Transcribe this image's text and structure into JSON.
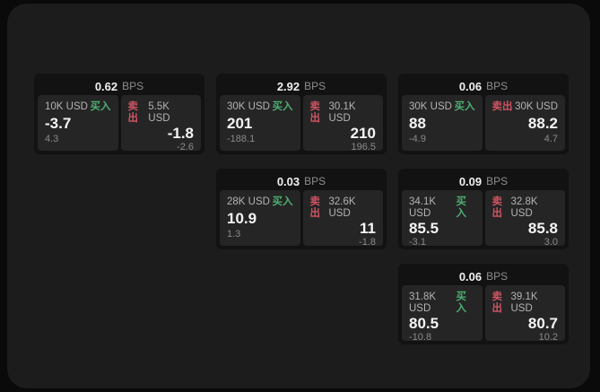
{
  "labels": {
    "bps_suffix": "BPS",
    "buy": "买入",
    "sell": "卖出"
  },
  "colors": {
    "buy_green": "#4fae72",
    "sell_red": "#d05463",
    "panel_bg": "#1c1c1c",
    "card_bg": "#121212",
    "quote_bg": "#252525",
    "page_bg": "#0a0a0a"
  },
  "layout": {
    "columns": [
      [
        0
      ],
      [
        1,
        3
      ],
      [
        2,
        4,
        5
      ]
    ]
  },
  "cards": [
    {
      "bps": "0.62",
      "buy": {
        "amount": "10K USD",
        "value": "-3.7",
        "delta": "4.3"
      },
      "sell": {
        "amount": "5.5K USD",
        "value": "-1.8",
        "delta": "-2.6"
      }
    },
    {
      "bps": "2.92",
      "buy": {
        "amount": "30K USD",
        "value": "201",
        "delta": "-188.1"
      },
      "sell": {
        "amount": "30.1K USD",
        "value": "210",
        "delta": "196.5"
      }
    },
    {
      "bps": "0.06",
      "buy": {
        "amount": "30K USD",
        "value": "88",
        "delta": "-4.9"
      },
      "sell": {
        "amount": "30K USD",
        "value": "88.2",
        "delta": "4.7"
      }
    },
    {
      "bps": "0.03",
      "buy": {
        "amount": "28K USD",
        "value": "10.9",
        "delta": "1.3"
      },
      "sell": {
        "amount": "32.6K USD",
        "value": "11",
        "delta": "-1.8"
      }
    },
    {
      "bps": "0.09",
      "buy": {
        "amount": "34.1K USD",
        "value": "85.5",
        "delta": "-3.1"
      },
      "sell": {
        "amount": "32.8K USD",
        "value": "85.8",
        "delta": "3.0"
      }
    },
    {
      "bps": "0.06",
      "buy": {
        "amount": "31.8K USD",
        "value": "80.5",
        "delta": "-10.8"
      },
      "sell": {
        "amount": "39.1K USD",
        "value": "80.7",
        "delta": "10.2"
      }
    }
  ]
}
